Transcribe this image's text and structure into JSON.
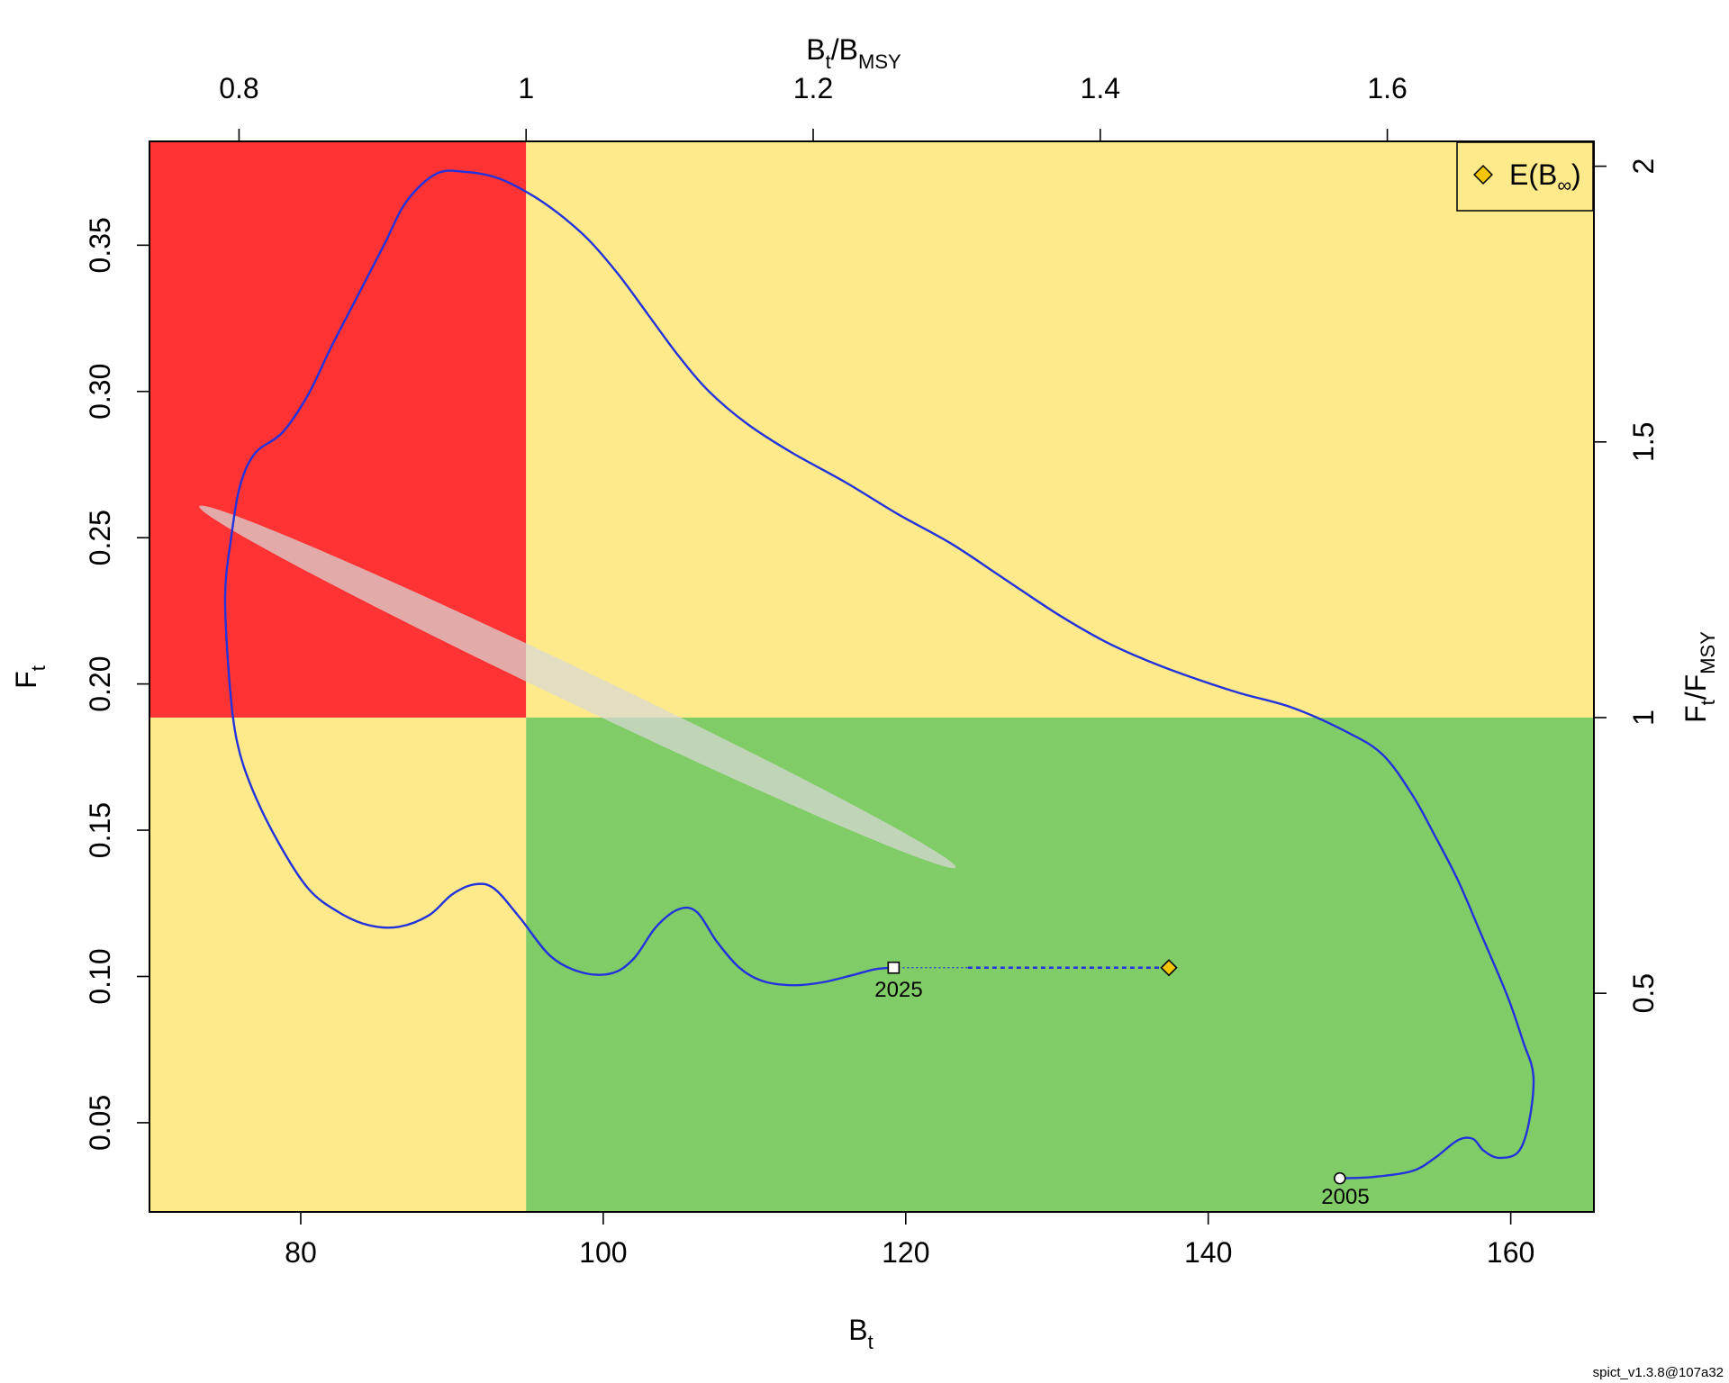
{
  "chart_data": {
    "type": "line",
    "xlabel": {
      "main": "B",
      "sub": "t"
    },
    "ylabel": {
      "main": "F",
      "sub": "t"
    },
    "top_axis_label": {
      "main1": "B",
      "sub1": "t",
      "sep": "/",
      "main2": "B",
      "sub2": "MSY"
    },
    "right_axis_label": {
      "main1": "F",
      "sub1": "t",
      "sep": "/",
      "main2": "F",
      "sub2": "MSY"
    },
    "xlim": [
      70,
      165.5
    ],
    "ylim": [
      0.0195,
      0.3855
    ],
    "x_ticks": [
      80,
      100,
      120,
      140,
      160
    ],
    "x_tick_labels": [
      "80",
      "100",
      "120",
      "140",
      "160"
    ],
    "y_ticks": [
      0.05,
      0.1,
      0.15,
      0.2,
      0.25,
      0.3,
      0.35
    ],
    "y_tick_labels": [
      "0.05",
      "0.10",
      "0.15",
      "0.20",
      "0.25",
      "0.30",
      "0.35"
    ],
    "bmsy": 94.9,
    "fmsy": 0.1885,
    "top_ticks": [
      0.8,
      1.0,
      1.2,
      1.4,
      1.6
    ],
    "top_tick_labels": [
      "0.8",
      "1",
      "1.2",
      "1.4",
      "1.6"
    ],
    "right_ticks": [
      0.5,
      1.0,
      1.5,
      2.0
    ],
    "right_tick_labels": [
      "0.5",
      "1",
      "1.5",
      "2"
    ],
    "zones": {
      "red": "#ff3333",
      "yellow": "#feea8a",
      "green": "#80cc66"
    },
    "ellipse": {
      "center": [
        98.3,
        0.199
      ],
      "semi_major": [
        25,
        -0.0618
      ],
      "semi_minor": [
        -0.76,
        -0.0047
      ],
      "color": "#d8d8d8"
    },
    "trajectory": {
      "color": "#2233dd",
      "points": [
        [
          148.7,
          0.031
        ],
        [
          151.0,
          0.0315
        ],
        [
          153.5,
          0.0335
        ],
        [
          155.0,
          0.038
        ],
        [
          156.5,
          0.044
        ],
        [
          157.5,
          0.0445
        ],
        [
          158.2,
          0.0405
        ],
        [
          159.2,
          0.038
        ],
        [
          160.5,
          0.04
        ],
        [
          161.2,
          0.05
        ],
        [
          161.5,
          0.066
        ],
        [
          160.8,
          0.078
        ],
        [
          159.8,
          0.093
        ],
        [
          158.0,
          0.115
        ],
        [
          156.5,
          0.133
        ],
        [
          155.0,
          0.148
        ],
        [
          153.5,
          0.162
        ],
        [
          151.5,
          0.176
        ],
        [
          149.0,
          0.184
        ],
        [
          145.5,
          0.192
        ],
        [
          142.0,
          0.197
        ],
        [
          138.5,
          0.203
        ],
        [
          135.5,
          0.209
        ],
        [
          133.0,
          0.215
        ],
        [
          130.0,
          0.224
        ],
        [
          126.5,
          0.236
        ],
        [
          123.0,
          0.248
        ],
        [
          119.5,
          0.258
        ],
        [
          116.0,
          0.269
        ],
        [
          112.5,
          0.279
        ],
        [
          109.5,
          0.289
        ],
        [
          107.0,
          0.3
        ],
        [
          105.0,
          0.312
        ],
        [
          103.0,
          0.326
        ],
        [
          101.0,
          0.34
        ],
        [
          99.0,
          0.352
        ],
        [
          97.0,
          0.361
        ],
        [
          95.0,
          0.368
        ],
        [
          93.0,
          0.373
        ],
        [
          91.0,
          0.375
        ],
        [
          89.0,
          0.3745
        ],
        [
          87.0,
          0.365
        ],
        [
          85.5,
          0.35
        ],
        [
          84.0,
          0.335
        ],
        [
          82.0,
          0.315
        ],
        [
          80.5,
          0.299
        ],
        [
          78.8,
          0.286
        ],
        [
          77.0,
          0.279
        ],
        [
          76.0,
          0.268
        ],
        [
          75.4,
          0.25
        ],
        [
          75.0,
          0.23
        ],
        [
          75.3,
          0.2
        ],
        [
          75.8,
          0.18
        ],
        [
          76.8,
          0.164
        ],
        [
          78.5,
          0.146
        ],
        [
          80.5,
          0.13
        ],
        [
          82.5,
          0.122
        ],
        [
          84.5,
          0.1175
        ],
        [
          86.5,
          0.117
        ],
        [
          88.5,
          0.121
        ],
        [
          90.0,
          0.128
        ],
        [
          91.5,
          0.1315
        ],
        [
          92.8,
          0.13
        ],
        [
          94.5,
          0.12
        ],
        [
          96.5,
          0.107
        ],
        [
          98.5,
          0.1015
        ],
        [
          100.5,
          0.101
        ],
        [
          102.0,
          0.106
        ],
        [
          103.5,
          0.117
        ],
        [
          105.0,
          0.123
        ],
        [
          106.2,
          0.122
        ],
        [
          107.5,
          0.112
        ],
        [
          109.0,
          0.103
        ],
        [
          110.5,
          0.0985
        ],
        [
          112.5,
          0.097
        ],
        [
          114.5,
          0.098
        ],
        [
          116.5,
          0.1005
        ],
        [
          118.0,
          0.1025
        ],
        [
          119.2,
          0.103
        ]
      ]
    },
    "projection": {
      "from": [
        119.2,
        0.103
      ],
      "to": [
        137.4,
        0.103
      ],
      "color": "#2233dd"
    },
    "start_point": {
      "x": 148.7,
      "y": 0.031,
      "label": "2005"
    },
    "end_point": {
      "x": 119.2,
      "y": 0.103,
      "label": "2025"
    },
    "binf_point": {
      "x": 137.4,
      "y": 0.103,
      "color": "#f5c400"
    },
    "legend": {
      "placement": "top-right",
      "entry": {
        "main": "E(B",
        "sub": "∞",
        "close": ")"
      }
    },
    "footer": "spict_v1.3.8@107a32"
  }
}
